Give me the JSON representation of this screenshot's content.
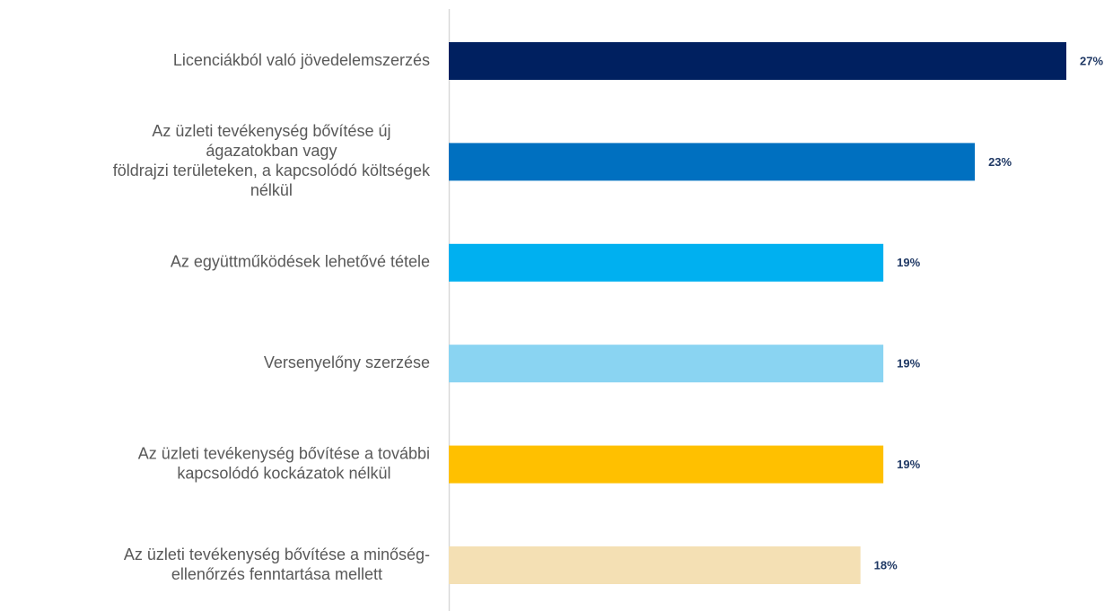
{
  "chart_data": {
    "type": "barh",
    "categories": [
      [
        "Licenciákból való jövedelemszerzés"
      ],
      [
        "Az üzleti tevékenység bővítése új",
        "ágazatokban vagy",
        "földrajzi területeken, a kapcsolódó költségek",
        "nélkül"
      ],
      [
        "Az együttműködések lehetővé tétele"
      ],
      [
        "Versenyelőny szerzése"
      ],
      [
        "Az üzleti tevékenység bővítése a további",
        "kapcsolódó kockázatok nélkül"
      ],
      [
        "Az üzleti tevékenység bővítése a minőség-",
        "ellenőrzés fenntartása mellett"
      ]
    ],
    "values": [
      27,
      23,
      19,
      19,
      19,
      18
    ],
    "value_labels": [
      "27%",
      "23%",
      "19%",
      "19%",
      "19%",
      "18%"
    ],
    "colors": [
      "#002060",
      "#0070c0",
      "#00b0f0",
      "#8ad4f2",
      "#ffc000",
      "#f4e0b4"
    ],
    "value_label_color": "#1f3864"
  }
}
